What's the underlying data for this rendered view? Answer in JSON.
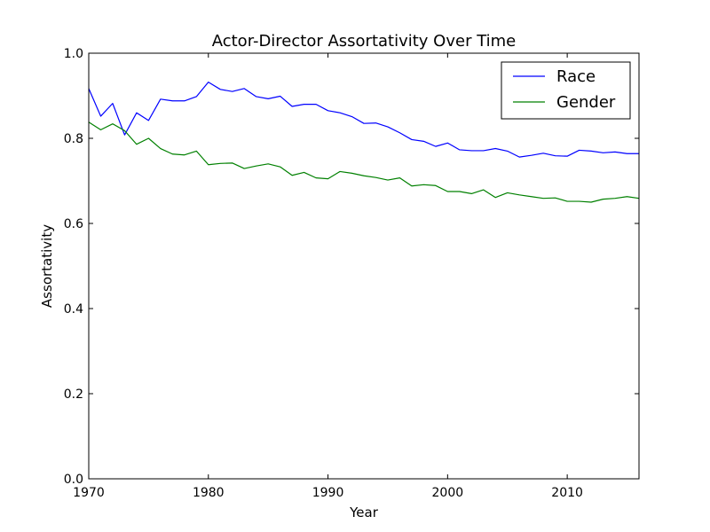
{
  "chart_data": {
    "type": "line",
    "title": "Actor-Director Assortativity Over Time",
    "xlabel": "Year",
    "ylabel": "Assortativity",
    "xlim": [
      1970,
      2016
    ],
    "ylim": [
      0.0,
      1.0
    ],
    "xticks": [
      1970,
      1980,
      1990,
      2000,
      2010
    ],
    "xtick_labels": [
      "1970",
      "1980",
      "1990",
      "2000",
      "2010"
    ],
    "yticks": [
      0.0,
      0.2,
      0.4,
      0.6,
      0.8,
      1.0
    ],
    "ytick_labels": [
      "0.0",
      "0.2",
      "0.4",
      "0.6",
      "0.8",
      "1.0"
    ],
    "grid": false,
    "legend_position": "top-right",
    "x": [
      1970,
      1971,
      1972,
      1973,
      1974,
      1975,
      1976,
      1977,
      1978,
      1979,
      1980,
      1981,
      1982,
      1983,
      1984,
      1985,
      1986,
      1987,
      1988,
      1989,
      1990,
      1991,
      1992,
      1993,
      1994,
      1995,
      1996,
      1997,
      1998,
      1999,
      2000,
      2001,
      2002,
      2003,
      2004,
      2005,
      2006,
      2007,
      2008,
      2009,
      2010,
      2011,
      2012,
      2013,
      2014,
      2015,
      2016
    ],
    "series": [
      {
        "name": "Race",
        "color": "#0000ff",
        "values": [
          0.917,
          0.852,
          0.882,
          0.808,
          0.86,
          0.842,
          0.892,
          0.888,
          0.888,
          0.898,
          0.932,
          0.915,
          0.91,
          0.917,
          0.898,
          0.893,
          0.899,
          0.875,
          0.88,
          0.88,
          0.865,
          0.86,
          0.851,
          0.835,
          0.836,
          0.827,
          0.813,
          0.797,
          0.793,
          0.781,
          0.789,
          0.773,
          0.771,
          0.771,
          0.776,
          0.77,
          0.756,
          0.76,
          0.765,
          0.759,
          0.758,
          0.772,
          0.77,
          0.766,
          0.768,
          0.764,
          0.764
        ]
      },
      {
        "name": "Gender",
        "color": "#008000",
        "values": [
          0.838,
          0.82,
          0.834,
          0.818,
          0.786,
          0.8,
          0.776,
          0.763,
          0.761,
          0.77,
          0.738,
          0.741,
          0.742,
          0.729,
          0.735,
          0.74,
          0.733,
          0.713,
          0.72,
          0.707,
          0.705,
          0.722,
          0.718,
          0.712,
          0.708,
          0.702,
          0.707,
          0.688,
          0.691,
          0.689,
          0.675,
          0.675,
          0.67,
          0.679,
          0.661,
          0.672,
          0.667,
          0.663,
          0.659,
          0.66,
          0.652,
          0.652,
          0.65,
          0.657,
          0.659,
          0.663,
          0.659
        ]
      }
    ]
  }
}
